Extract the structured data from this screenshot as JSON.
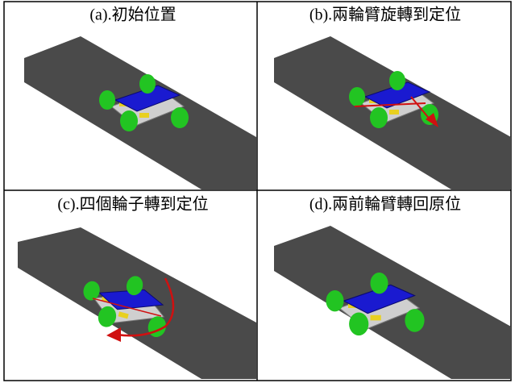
{
  "panels": [
    {
      "caption": "(a).初始位置"
    },
    {
      "caption": "(b).兩輪臂旋轉到定位"
    },
    {
      "caption": "(c).四個輪子轉到定位"
    },
    {
      "caption": "(d).兩前輪臂轉回原位"
    }
  ]
}
